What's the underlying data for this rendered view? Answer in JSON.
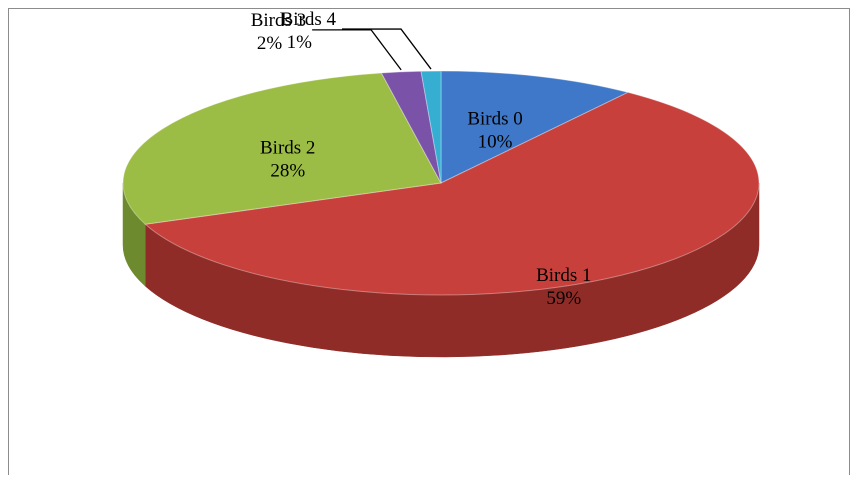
{
  "chart_data": {
    "type": "pie",
    "style": "3d",
    "categories": [
      "Birds 0",
      "Birds 1",
      "Birds 2",
      "Birds 3",
      "Birds 4"
    ],
    "values": [
      10,
      59,
      28,
      2,
      1
    ],
    "value_labels": [
      "10%",
      "59%",
      "28%",
      "2%",
      "1%"
    ],
    "colors": [
      "#3f78c8",
      "#c8403c",
      "#9cbd45",
      "#7a52a8",
      "#35aed2"
    ],
    "side_colors": [
      "#2c5a96",
      "#8f2c28",
      "#6e8a2e",
      "#553a78",
      "#2384a0"
    ],
    "title": "",
    "legend": "none"
  }
}
